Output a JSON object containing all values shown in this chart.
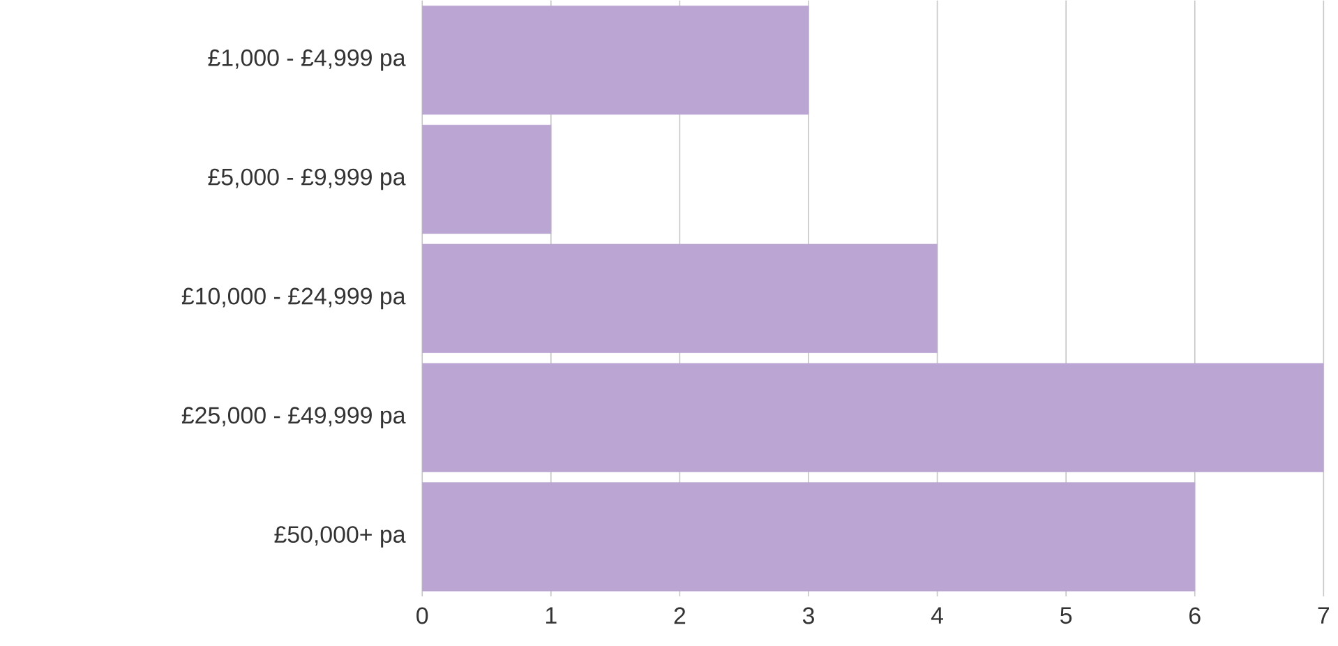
{
  "chart_data": {
    "type": "bar",
    "orientation": "horizontal",
    "categories": [
      "£1,000 - £4,999 pa",
      "£5,000 - £9,999 pa",
      "£10,000 - £24,999 pa",
      "£25,000 - £49,999 pa",
      "£50,000+ pa"
    ],
    "values": [
      3,
      1,
      4,
      7,
      6
    ],
    "color": "#bba6d3",
    "xlim": [
      0,
      7
    ],
    "xticks": [
      0,
      1,
      2,
      3,
      4,
      5,
      6,
      7
    ],
    "grid": "x"
  }
}
